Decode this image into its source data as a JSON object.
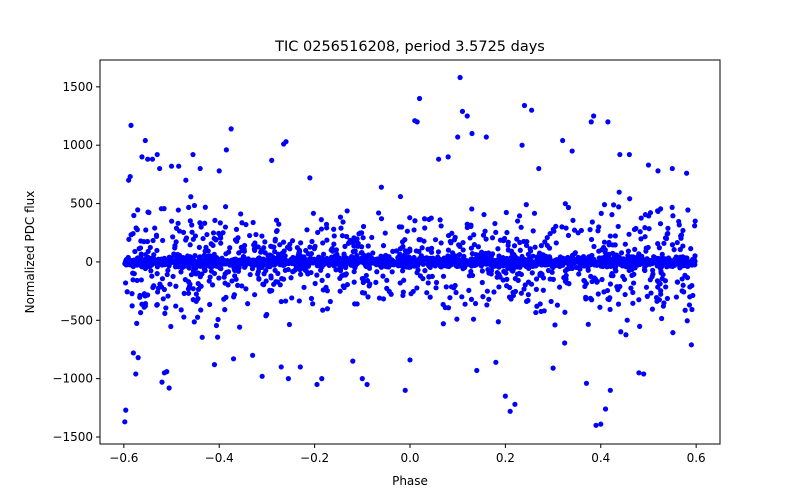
{
  "chart_data": {
    "type": "scatter",
    "title": "TIC 0256516208, period 3.5725 days",
    "xlabel": "Phase",
    "ylabel": "Normalized PDC flux",
    "xlim": [
      -0.65,
      0.65
    ],
    "ylim": [
      -1560,
      1730
    ],
    "xticks": [
      -0.6,
      -0.4,
      -0.2,
      0.0,
      0.2,
      0.4,
      0.6
    ],
    "xtick_labels": [
      "−0.6",
      "−0.4",
      "−0.2",
      "0.0",
      "0.2",
      "0.4",
      "0.6"
    ],
    "yticks": [
      -1500,
      -1000,
      -500,
      0,
      500,
      1000,
      1500
    ],
    "ytick_labels": [
      "−1500",
      "−1000",
      "−500",
      "0",
      "500",
      "1000",
      "1500"
    ],
    "grid": false,
    "marker_color": "#0000ff",
    "series": [
      {
        "name": "PDC flux",
        "points": [
          [
            -0.598,
            -1370
          ],
          [
            -0.596,
            -1270
          ],
          [
            -0.59,
            700
          ],
          [
            -0.585,
            1170
          ],
          [
            -0.58,
            -780
          ],
          [
            -0.575,
            -960
          ],
          [
            -0.57,
            -820
          ],
          [
            -0.562,
            900
          ],
          [
            -0.555,
            1040
          ],
          [
            -0.55,
            880
          ],
          [
            -0.54,
            880
          ],
          [
            -0.53,
            920
          ],
          [
            -0.525,
            800
          ],
          [
            -0.52,
            -1030
          ],
          [
            -0.515,
            -950
          ],
          [
            -0.51,
            -940
          ],
          [
            -0.505,
            -1080
          ],
          [
            -0.5,
            820
          ],
          [
            -0.485,
            820
          ],
          [
            -0.47,
            700
          ],
          [
            -0.455,
            920
          ],
          [
            -0.44,
            800
          ],
          [
            -0.41,
            -880
          ],
          [
            -0.4,
            780
          ],
          [
            -0.385,
            960
          ],
          [
            -0.375,
            1140
          ],
          [
            -0.37,
            -830
          ],
          [
            -0.33,
            -800
          ],
          [
            -0.31,
            -980
          ],
          [
            -0.29,
            870
          ],
          [
            -0.27,
            -900
          ],
          [
            -0.265,
            1010
          ],
          [
            -0.26,
            1030
          ],
          [
            -0.255,
            -1000
          ],
          [
            -0.23,
            -900
          ],
          [
            -0.21,
            720
          ],
          [
            -0.195,
            -1050
          ],
          [
            -0.185,
            -1000
          ],
          [
            -0.16,
            280
          ],
          [
            -0.12,
            -850
          ],
          [
            -0.1,
            -1000
          ],
          [
            -0.09,
            -1050
          ],
          [
            -0.06,
            640
          ],
          [
            -0.02,
            560
          ],
          [
            -0.01,
            -1100
          ],
          [
            0.0,
            -840
          ],
          [
            0.01,
            1210
          ],
          [
            0.015,
            1200
          ],
          [
            0.02,
            1400
          ],
          [
            0.06,
            880
          ],
          [
            0.08,
            900
          ],
          [
            0.1,
            1070
          ],
          [
            0.105,
            1580
          ],
          [
            0.11,
            1290
          ],
          [
            0.12,
            1250
          ],
          [
            0.13,
            1100
          ],
          [
            0.14,
            -930
          ],
          [
            0.16,
            1070
          ],
          [
            0.18,
            -860
          ],
          [
            0.2,
            -1150
          ],
          [
            0.21,
            -1280
          ],
          [
            0.22,
            -1220
          ],
          [
            0.235,
            1000
          ],
          [
            0.24,
            1340
          ],
          [
            0.255,
            1300
          ],
          [
            0.27,
            800
          ],
          [
            0.3,
            -910
          ],
          [
            0.32,
            1040
          ],
          [
            0.34,
            950
          ],
          [
            0.37,
            -1040
          ],
          [
            0.38,
            1200
          ],
          [
            0.385,
            1250
          ],
          [
            0.39,
            -1400
          ],
          [
            0.4,
            -1390
          ],
          [
            0.41,
            -1260
          ],
          [
            0.415,
            1200
          ],
          [
            0.42,
            -1100
          ],
          [
            0.44,
            920
          ],
          [
            0.46,
            920
          ],
          [
            0.48,
            -950
          ],
          [
            0.49,
            -960
          ],
          [
            0.5,
            830
          ],
          [
            0.52,
            780
          ],
          [
            0.55,
            800
          ],
          [
            0.58,
            760
          ],
          [
            0.59,
            -710
          ],
          [
            0.598,
            350
          ]
        ]
      }
    ]
  }
}
